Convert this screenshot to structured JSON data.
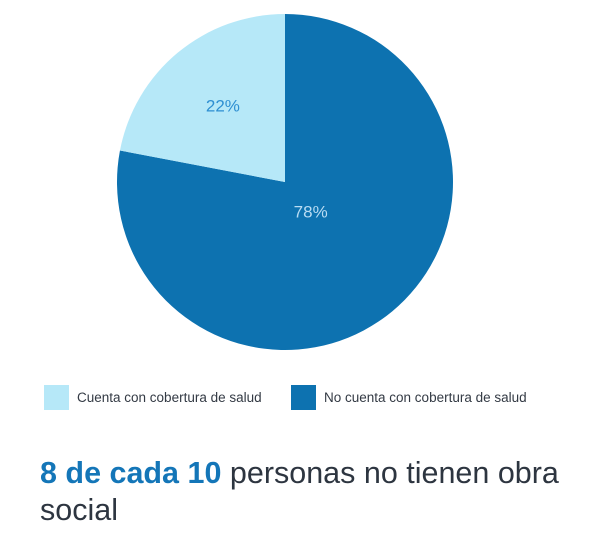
{
  "chart_data": {
    "type": "pie",
    "start": "12 o'clock",
    "direction": "clockwise",
    "slices": [
      {
        "label": "No cuenta con cobertura de salud",
        "value": 78,
        "value_label": "78%",
        "color": "#0d72b0"
      },
      {
        "label": "Cuenta con cobertura de salud",
        "value": 22,
        "value_label": "22%",
        "color": "#b6e8f8"
      }
    ],
    "legend": {
      "placement": "bottom",
      "items": [
        {
          "label": "Cuenta con cobertura de salud",
          "color": "#b6e8f8"
        },
        {
          "label": "No cuenta con cobertura de salud",
          "color": "#0d72b0"
        }
      ]
    },
    "value_label_color": "#2e8fd2"
  },
  "headline": {
    "highlight": "8 de cada 10",
    "rest": "personas no tienen obra social",
    "highlight_color": "#1476b8"
  }
}
